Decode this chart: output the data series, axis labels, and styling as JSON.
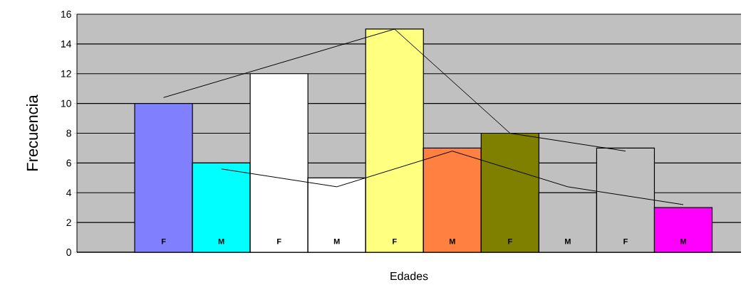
{
  "chart_data": {
    "type": "bar",
    "xlabel": "Edades",
    "ylabel": "Frecuencia",
    "categories": [
      "F",
      "M",
      "F",
      "M",
      "F",
      "M",
      "F",
      "M",
      "F",
      "M"
    ],
    "values": [
      10,
      6,
      12,
      5,
      15,
      7,
      8,
      4,
      7,
      3
    ],
    "colors": [
      "#8080ff",
      "#00ffff",
      "#ffffff",
      "#ffffff",
      "#ffff80",
      "#ff8040",
      "#808000",
      "#c0c0c0",
      "#c0c0c0",
      "#ff00ff"
    ],
    "series": [
      {
        "type": "line",
        "color": "#000000",
        "values": [
          10.4,
          null,
          null,
          null,
          15,
          null,
          8,
          null,
          6.8,
          null
        ]
      },
      {
        "type": "line",
        "color": "#000000",
        "values": [
          null,
          5.6,
          null,
          4.4,
          null,
          6.8,
          null,
          4.4,
          null,
          3.2
        ]
      }
    ],
    "ylim": [
      0,
      16
    ],
    "yticks": [
      0,
      2,
      4,
      6,
      8,
      10,
      12,
      14,
      16
    ],
    "grid": "y"
  }
}
